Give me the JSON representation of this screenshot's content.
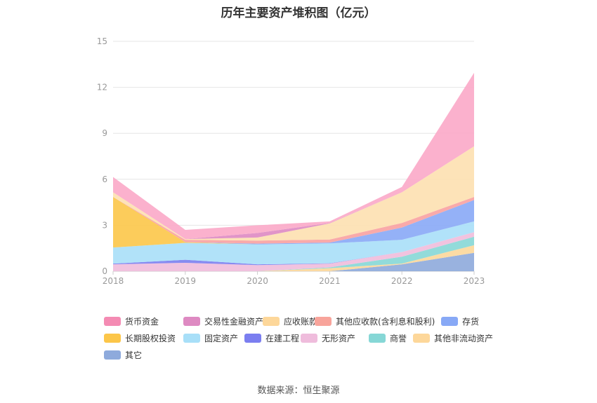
{
  "title": "历年主要资产堆积图（亿元）",
  "source": "数据来源：恒生聚源",
  "chart_data": {
    "type": "area",
    "stacked": true,
    "x": [
      "2018",
      "2019",
      "2020",
      "2021",
      "2022",
      "2023"
    ],
    "ylim": [
      0,
      15
    ],
    "yticks": [
      0,
      3,
      6,
      9,
      12,
      15
    ],
    "grid": true,
    "legend_position": "bottom",
    "series": [
      {
        "name": "其它",
        "color": "#8eaadc",
        "values": [
          0,
          0,
          0,
          0,
          0.45,
          1.2
        ]
      },
      {
        "name": "其他非流动资产",
        "color": "#fcd79a",
        "values": [
          0,
          0,
          0,
          0.2,
          0.05,
          0.5
        ]
      },
      {
        "name": "商誉",
        "color": "#86d7d6",
        "values": [
          0,
          0,
          0,
          0.05,
          0.45,
          0.55
        ]
      },
      {
        "name": "无形资产",
        "color": "#efbcdc",
        "values": [
          0.45,
          0.55,
          0.4,
          0.25,
          0.3,
          0.3
        ]
      },
      {
        "name": "在建工程",
        "color": "#7b7ef0",
        "values": [
          0.05,
          0.2,
          0.05,
          0.02,
          0,
          0
        ]
      },
      {
        "name": "固定资产",
        "color": "#a8dff8",
        "values": [
          1.05,
          1.1,
          1.3,
          1.3,
          0.8,
          0.7
        ]
      },
      {
        "name": "长期股权投资",
        "color": "#fcc649",
        "values": [
          3.3,
          0.05,
          0,
          0,
          0,
          0
        ]
      },
      {
        "name": "存货",
        "color": "#88a9f6",
        "values": [
          0,
          0,
          0.05,
          0.05,
          0.8,
          1.4
        ]
      },
      {
        "name": "其他应收款(含利息和股利)",
        "color": "#f8a1a1",
        "values": [
          0,
          0.15,
          0.2,
          0.2,
          0.3,
          0.2
        ]
      },
      {
        "name": "应收账款",
        "color": "#fde0b0",
        "values": [
          0.3,
          0.05,
          0.2,
          1.05,
          2.0,
          3.3
        ]
      },
      {
        "name": "交易性金融资产",
        "color": "#de8ac2",
        "values": [
          0,
          0,
          0.3,
          0.03,
          0,
          0
        ]
      },
      {
        "name": "货币资金",
        "color": "#fba8c8",
        "values": [
          1.0,
          0.6,
          0.5,
          0.1,
          0.35,
          4.8
        ]
      }
    ],
    "legend_order": [
      "货币资金",
      "交易性金融资产",
      "应收账款",
      "其他应收款(含利息和股利)",
      "存货",
      "长期股权投资",
      "固定资产",
      "在建工程",
      "无形资产",
      "商誉",
      "其他非流动资产",
      "其它"
    ],
    "legend_colors": [
      "#f48bb3",
      "#de8ac2",
      "#fdd79a",
      "#f8a49b",
      "#88a9f6",
      "#fcc649",
      "#a8dff8",
      "#7b7ef0",
      "#efbcdc",
      "#86d7d6",
      "#fdd79a",
      "#8eaadc"
    ]
  }
}
